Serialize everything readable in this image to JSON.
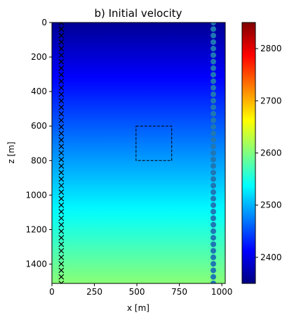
{
  "chart_data": {
    "type": "heatmap",
    "title": "b) Initial velocity",
    "xlabel": "x [m]",
    "ylabel": "z [m]",
    "xlim": [
      0,
      1020
    ],
    "ylim": [
      1512,
      0
    ],
    "x_ticks": [
      0,
      250,
      500,
      750,
      1000
    ],
    "x_tick_labels": [
      "0",
      "250",
      "500",
      "750",
      "1000"
    ],
    "y_ticks": [
      0,
      200,
      400,
      600,
      800,
      1000,
      1200,
      1400
    ],
    "y_tick_labels": [
      "0",
      "200",
      "400",
      "600",
      "800",
      "1000",
      "1200",
      "1400"
    ],
    "colormap": "jet",
    "vmin": 2350,
    "vmax": 2850,
    "velocity_profile": {
      "z": [
        0,
        1512
      ],
      "velocity": [
        2360,
        2605
      ]
    },
    "colorbar": {
      "ticks": [
        2400,
        2500,
        2600,
        2700,
        2800
      ],
      "tick_labels": [
        "2400",
        "2500",
        "2600",
        "2700",
        "2800"
      ]
    },
    "sources": {
      "marker": "x",
      "color": "#000000",
      "x": 55,
      "z_start": 0,
      "z_step": 37.8,
      "count": 41
    },
    "receivers": {
      "marker": "o",
      "color": "#1f77b4",
      "x": 950,
      "z_start": 0,
      "z_step": 37.8,
      "count": 41
    },
    "target_box": {
      "x": [
        495,
        705
      ],
      "z": [
        600,
        800
      ],
      "style": "dashed"
    },
    "grid": false
  }
}
